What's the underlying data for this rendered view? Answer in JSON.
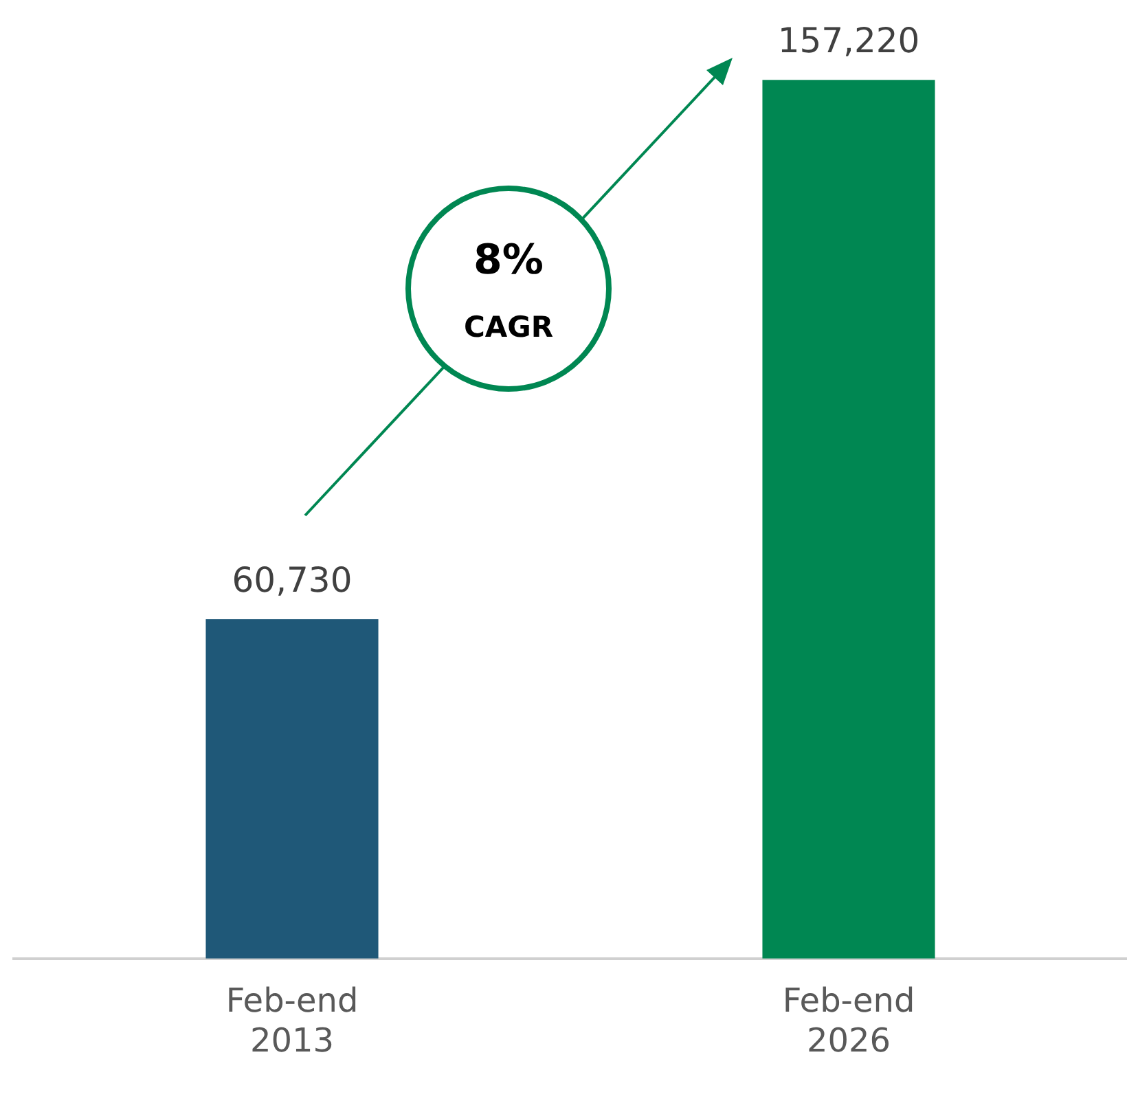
{
  "chart_data": {
    "type": "bar",
    "categories": [
      "Feb-end 2013",
      "Feb-end 2026"
    ],
    "values": [
      60730,
      157220
    ],
    "value_labels": [
      "60,730",
      "157,220"
    ],
    "colors": [
      "#1f5878",
      "#008752"
    ],
    "grid": false,
    "legend": false,
    "annotations": [
      "8%",
      "CAGR"
    ]
  }
}
